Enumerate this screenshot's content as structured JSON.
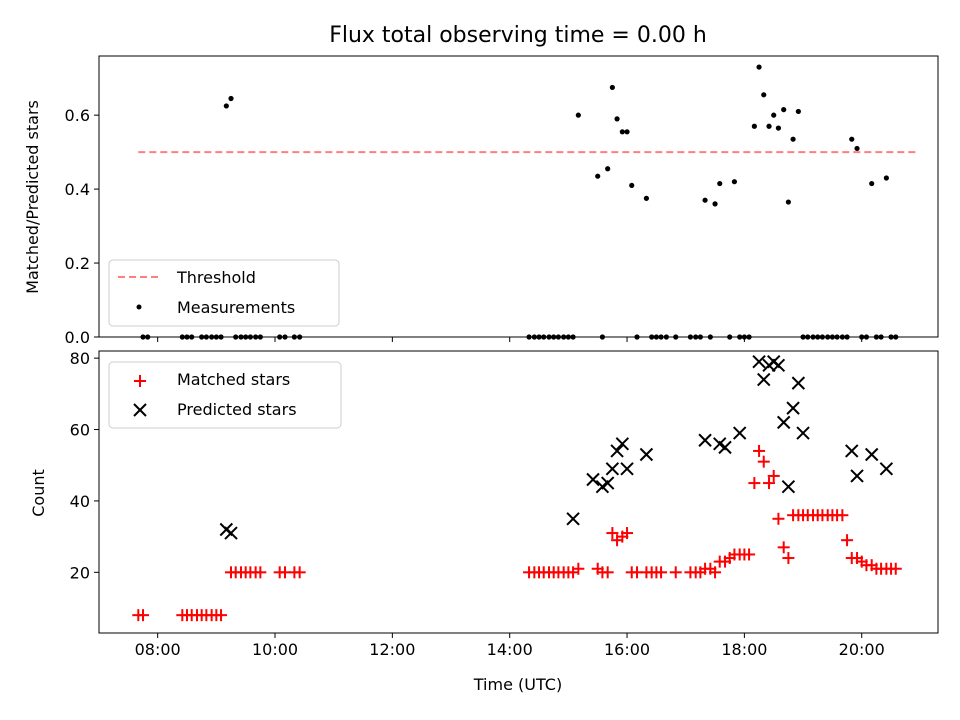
{
  "chart_data": [
    {
      "type": "scatter",
      "title": "Flux total observing time = 0.00 h",
      "xlabel": "",
      "ylabel": "Matched/Predicted stars",
      "xlim": [
        7.0,
        21.3
      ],
      "ylim": [
        0.0,
        0.76
      ],
      "yticks": [
        0.0,
        0.2,
        0.4,
        0.6
      ],
      "yticklabels": [
        "0.0",
        "0.2",
        "0.4",
        "0.6"
      ],
      "xticks": [
        8,
        10,
        12,
        14,
        16,
        18,
        20
      ],
      "show_xticklabels": false,
      "legend": {
        "position": "lower left",
        "entries": [
          "Threshold",
          "Measurements"
        ]
      },
      "threshold": {
        "name": "Threshold",
        "x": [
          7.67,
          20.97
        ],
        "y": 0.5,
        "color": "#ff7f7f"
      },
      "series": [
        {
          "name": "Measurements",
          "color": "#000000",
          "x": [
            7.75,
            7.83,
            8.42,
            8.5,
            8.58,
            8.75,
            8.83,
            8.92,
            9.0,
            9.08,
            9.17,
            9.25,
            9.33,
            9.42,
            9.5,
            9.58,
            9.67,
            9.75,
            10.08,
            10.17,
            10.33,
            10.42,
            14.33,
            14.42,
            14.5,
            14.58,
            14.67,
            14.75,
            14.83,
            14.92,
            15.0,
            15.08,
            15.17,
            15.5,
            15.58,
            15.67,
            15.75,
            15.83,
            15.92,
            16.0,
            16.08,
            16.17,
            16.33,
            16.42,
            16.5,
            16.58,
            16.67,
            16.83,
            17.08,
            17.17,
            17.25,
            17.33,
            17.42,
            17.5,
            17.58,
            17.75,
            17.83,
            17.92,
            18.0,
            18.08,
            18.17,
            18.25,
            18.33,
            18.42,
            18.5,
            18.58,
            18.67,
            18.75,
            18.83,
            18.92,
            19.0,
            19.08,
            19.17,
            19.25,
            19.33,
            19.42,
            19.5,
            19.58,
            19.67,
            19.75,
            19.83,
            19.92,
            20.0,
            20.08,
            20.17,
            20.25,
            20.33,
            20.42,
            20.5,
            20.58
          ],
          "y": [
            0,
            0,
            0,
            0,
            0,
            0,
            0,
            0,
            0,
            0,
            0.625,
            0.645,
            0,
            0,
            0,
            0,
            0,
            0,
            0,
            0,
            0,
            0,
            0,
            0,
            0,
            0,
            0,
            0,
            0,
            0,
            0,
            0,
            0.6,
            0.435,
            0,
            0.455,
            0.675,
            0.59,
            0.555,
            0.555,
            0.41,
            0,
            0.375,
            0,
            0,
            0,
            0,
            0,
            0,
            0,
            0,
            0.37,
            0,
            0.36,
            0.415,
            0,
            0.42,
            0,
            0,
            0,
            0.57,
            0.73,
            0.655,
            0.57,
            0.6,
            0.565,
            0.615,
            0.365,
            0.535,
            0.61,
            0,
            0,
            0,
            0,
            0,
            0,
            0,
            0,
            0,
            0,
            0.535,
            0.51,
            0,
            0,
            0.415,
            0,
            0,
            0.43,
            0,
            0
          ]
        }
      ]
    },
    {
      "type": "scatter",
      "title": "",
      "xlabel": "Time (UTC)",
      "ylabel": "Count",
      "xlim": [
        7.0,
        21.3
      ],
      "ylim": [
        3,
        82
      ],
      "yticks": [
        20,
        40,
        60,
        80
      ],
      "yticklabels": [
        "20",
        "40",
        "60",
        "80"
      ],
      "xticks": [
        8,
        10,
        12,
        14,
        16,
        18,
        20
      ],
      "xticklabels": [
        "08:00",
        "10:00",
        "12:00",
        "14:00",
        "16:00",
        "18:00",
        "20:00"
      ],
      "legend": {
        "position": "upper left",
        "entries": [
          "Matched stars",
          "Predicted stars"
        ]
      },
      "series": [
        {
          "name": "Matched stars",
          "marker": "+",
          "color": "#ff0000",
          "x": [
            7.67,
            7.75,
            8.42,
            8.5,
            8.58,
            8.67,
            8.75,
            8.83,
            8.92,
            9.0,
            9.08,
            9.25,
            9.33,
            9.42,
            9.5,
            9.58,
            9.67,
            9.75,
            10.08,
            10.17,
            10.33,
            10.42,
            14.33,
            14.42,
            14.5,
            14.58,
            14.67,
            14.75,
            14.83,
            14.92,
            15.0,
            15.08,
            15.17,
            15.5,
            15.58,
            15.67,
            15.75,
            15.83,
            15.92,
            16.0,
            16.08,
            16.17,
            16.33,
            16.42,
            16.5,
            16.58,
            16.83,
            17.08,
            17.17,
            17.25,
            17.33,
            17.42,
            17.5,
            17.58,
            17.67,
            17.75,
            17.83,
            17.92,
            18.0,
            18.08,
            18.17,
            18.25,
            18.33,
            18.42,
            18.5,
            18.58,
            18.67,
            18.75,
            18.83,
            18.92,
            19.0,
            19.08,
            19.17,
            19.25,
            19.33,
            19.42,
            19.5,
            19.58,
            19.67,
            19.75,
            19.83,
            19.92,
            20.0,
            20.08,
            20.17,
            20.25,
            20.33,
            20.42,
            20.5,
            20.58
          ],
          "y": [
            8,
            8,
            8,
            8,
            8,
            8,
            8,
            8,
            8,
            8,
            8,
            20,
            20,
            20,
            20,
            20,
            20,
            20,
            20,
            20,
            20,
            20,
            20,
            20,
            20,
            20,
            20,
            20,
            20,
            20,
            20,
            20,
            21,
            21,
            20,
            20,
            31,
            29,
            30,
            31,
            20,
            20,
            20,
            20,
            20,
            20,
            20,
            20,
            20,
            20,
            21,
            21,
            20,
            23,
            23,
            24,
            25,
            25,
            25,
            25,
            45,
            54,
            51,
            45,
            47,
            35,
            27,
            24,
            36,
            36,
            36,
            36,
            36,
            36,
            36,
            36,
            36,
            36,
            36,
            29,
            24,
            24,
            23,
            22,
            22,
            21,
            21,
            21,
            21,
            21
          ]
        },
        {
          "name": "Predicted stars",
          "marker": "x",
          "color": "#000000",
          "x": [
            9.17,
            9.25,
            15.08,
            15.42,
            15.58,
            15.67,
            15.75,
            15.83,
            15.92,
            16.0,
            16.33,
            17.33,
            17.58,
            17.67,
            17.92,
            18.25,
            18.33,
            18.42,
            18.5,
            18.58,
            18.67,
            18.75,
            18.83,
            18.92,
            19.0,
            19.83,
            19.92,
            20.17,
            20.42
          ],
          "y": [
            32,
            31,
            35,
            46,
            44,
            45,
            49,
            54,
            56,
            49,
            53,
            57,
            56,
            55,
            59,
            79,
            74,
            78,
            79,
            78,
            62,
            44,
            66,
            73,
            59,
            54,
            47,
            53,
            49
          ]
        }
      ]
    }
  ]
}
